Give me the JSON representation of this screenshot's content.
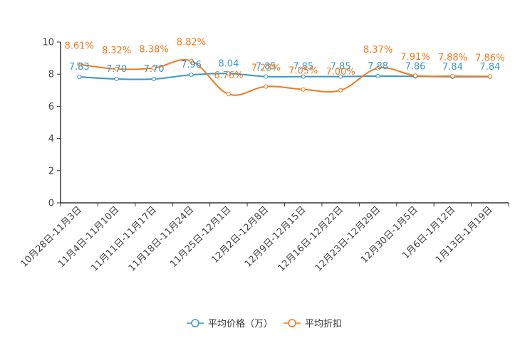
{
  "chart_data": {
    "type": "line",
    "title": "",
    "xlabel": "",
    "ylabel": "",
    "ylim": [
      0,
      10
    ],
    "yticks": [
      0,
      2,
      4,
      6,
      8,
      10
    ],
    "grid": false,
    "legend_position": "bottom-center",
    "categories": [
      "10月28日-11月3日",
      "11月4日-11月10日",
      "11月11日-11月17日",
      "11月18日-11月24日",
      "11月25日-12月1日",
      "12月2日-12月8日",
      "12月9日-12月15日",
      "12月16日-12月22日",
      "12月23日-12月29日",
      "12月30日-1月5日",
      "1月6日-1月12日",
      "1月13日-1月19日"
    ],
    "series": [
      {
        "name": "平均价格（万）",
        "color": "#3a98c9",
        "values": [
          7.83,
          7.7,
          7.7,
          7.96,
          8.04,
          7.85,
          7.85,
          7.85,
          7.88,
          7.86,
          7.84,
          7.84
        ],
        "labels": [
          "7.83",
          "7.70",
          "7.70",
          "7.96",
          "8.04",
          "7.85",
          "7.85",
          "7.85",
          "7.88",
          "7.86",
          "7.84",
          "7.84"
        ]
      },
      {
        "name": "平均折扣",
        "color": "#f07b1e",
        "values": [
          8.61,
          8.32,
          8.38,
          8.82,
          6.76,
          7.23,
          7.05,
          7.0,
          8.37,
          7.91,
          7.88,
          7.86
        ],
        "labels": [
          "8.61%",
          "8.32%",
          "8.38%",
          "8.82%",
          "6.76%",
          "7.23%",
          "7.05%",
          "7.00%",
          "8.37%",
          "7.91%",
          "7.88%",
          "7.86%"
        ]
      }
    ]
  }
}
